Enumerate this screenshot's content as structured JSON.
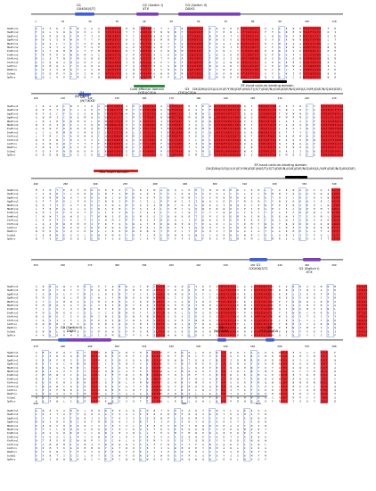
{
  "species": [
    "HsaMiro1",
    "HsaMiro2",
    "GgaMiro1",
    "GgaMiro2",
    "MmuMiro1",
    "MmuMiro2",
    "DreMiro1",
    "DreMiro2",
    "XtrMiro1",
    "XtrMiro2",
    "CelMiro",
    "DmeMiro",
    "ScGem1",
    "SpMiro"
  ],
  "colors": {
    "conserved": "#e8232a",
    "similar_text": "#e8232a",
    "box": "#3b5bdb",
    "ruler": "#8a8a8a",
    "blue_domain": "#3f5fd6",
    "purple_domain": "#7b3fb8",
    "green_domain": "#2e8b3e",
    "red_domain": "#d81e1e",
    "black_domain": "#000000"
  },
  "blocks": [
    {
      "ticks": [
        "1",
        "10",
        "20",
        "30",
        "40",
        "50",
        "60",
        "70",
        "80",
        "90",
        "100",
        "110"
      ],
      "labels_above": [
        {
          "title": "G1",
          "motif": "GX4GK(S/T)"
        },
        {
          "title": "G2 (Switch I)",
          "motif": "XTX"
        },
        {
          "title": "G3 (Switch II)",
          "motif": "DXXG"
        }
      ],
      "labels_below": [
        {
          "title": "Core effector domain",
          "motif": "(Y/D)(C/S)A"
        },
        {
          "title": "G4",
          "motif": "(N/T)KXD"
        },
        {
          "title": "G5",
          "motif": "(T/G)(C/S)A"
        },
        {
          "title": "EF-hand calcium-binding domain",
          "motif": "DX(D/N)(G/S)(I/L/V)(F/Y/W)(D/E)(N/S/T)(S/T)(D/E/N)(G/K)(D/E/N/Q)XX(I/L/V/M)(D/E/N/Q)XX(D/E)"
        }
      ]
    },
    {
      "ticks": [
        "120",
        "130",
        "140",
        "150",
        "160",
        "170",
        "180",
        "190",
        "200",
        "210",
        "220",
        "230"
      ],
      "labels_above": [
        {
          "title": "G4",
          "motif": "(N/T)KXD"
        }
      ],
      "labels_below": [
        {
          "title": "Rho insert domain",
          "motif": ""
        },
        {
          "title": "EF-hand calcium-binding domain",
          "motif": "DX(D/N)(G/S)(I/L/V)(F/Y/W)(D/E)(N/S/T)(S/T)(D/E/N)(G/K)(D/E/N/Q)XX(I/L/V/M)(D/E/N/Q)XX(D/E)"
        }
      ]
    },
    {
      "ticks": [
        "240",
        "250",
        "260",
        "270",
        "280",
        "290",
        "300",
        "310",
        "320",
        "330",
        "340"
      ],
      "labels_above": [],
      "labels_below": []
    },
    {
      "ticks": [
        "350",
        "360",
        "370",
        "380",
        "390",
        "400",
        "410",
        "420",
        "430",
        "440",
        "450",
        "460"
      ],
      "labels_above": [
        {
          "title": "G1",
          "motif": "GX4GK(S/T)"
        },
        {
          "title": "G2 (Switch I)",
          "motif": "XTX"
        }
      ],
      "labels_below": []
    },
    {
      "ticks": [
        "470",
        "480",
        "490",
        "500",
        "510",
        "520",
        "530",
        "540",
        "550",
        "560",
        "570",
        "580"
      ],
      "labels_above": [
        {
          "title": "G3 (Switch II)",
          "motif": "DXXG"
        },
        {
          "title": "G4",
          "motif": "(N/T)KXD"
        },
        {
          "title": "G5",
          "motif": "(Y/G)(C/S)A"
        }
      ],
      "labels_below": []
    },
    {
      "ticks": [
        "590",
        "600",
        "610",
        "620"
      ],
      "labels_above": [],
      "labels_below": []
    }
  ]
}
